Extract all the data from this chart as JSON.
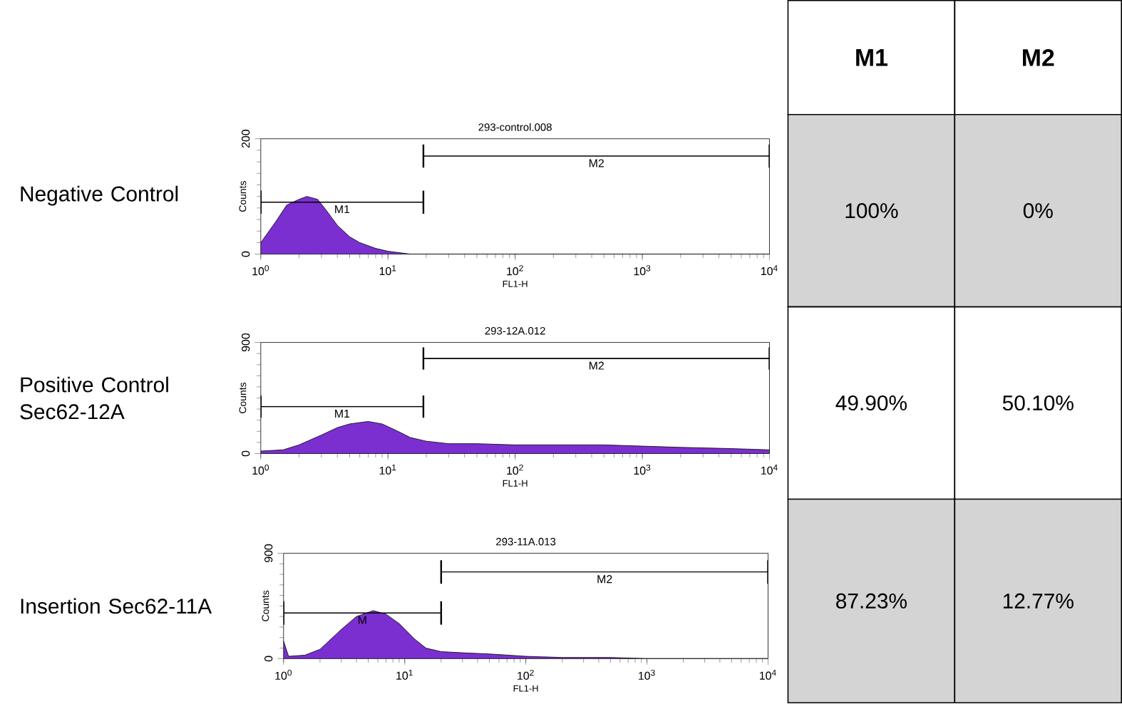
{
  "chart_data": [
    {
      "type": "area",
      "title": "293-control.008",
      "xlabel": "FL1-H",
      "ylabel": "Counts",
      "log": "x",
      "series": [
        {
          "color": "#7b2fd0",
          "x": [
            1,
            1.3,
            1.6,
            2,
            2.3,
            2.8,
            3.3,
            4,
            5,
            6,
            8,
            10,
            15,
            20,
            30,
            10000
          ],
          "values": [
            20,
            55,
            85,
            95,
            100,
            95,
            75,
            50,
            30,
            20,
            10,
            5,
            0,
            0,
            0,
            0
          ]
        },
        {
          "type": "line",
          "name": "M1",
          "color": "#000000",
          "x": [
            1,
            19
          ],
          "values": [
            90,
            90
          ],
          "errors": [
            20,
            20
          ]
        },
        {
          "type": "line",
          "name": "M2",
          "color": "#000000",
          "x": [
            19,
            10000
          ],
          "values": [
            170,
            170
          ],
          "errors": [
            20,
            20
          ]
        }
      ],
      "xlim": [
        1,
        10000
      ],
      "ylim": [
        0,
        200
      ],
      "xticks": [
        {
          "value": 1,
          "label": "10$^{0}$"
        },
        {
          "value": 10,
          "label": "10$^{1}$"
        },
        {
          "value": 100,
          "label": "10$^{2}$"
        },
        {
          "value": 1000,
          "label": "10$^{3}$"
        },
        {
          "value": 10000,
          "label": "10$^{4}$"
        }
      ],
      "yticks": [
        0,
        200
      ],
      "annotations": [
        "Negative Control"
      ]
    },
    {
      "type": "area",
      "title": "293-12A.012",
      "xlabel": "FL1-H",
      "ylabel": "Counts",
      "log": "x",
      "series": [
        {
          "color": "#7b2fd0",
          "x": [
            1,
            1.5,
            2,
            3,
            4,
            5,
            7,
            9,
            12,
            15,
            20,
            30,
            50,
            100,
            200,
            500,
            1000,
            2000,
            5000,
            10000
          ],
          "values": [
            20,
            30,
            70,
            150,
            210,
            240,
            260,
            240,
            180,
            130,
            100,
            80,
            80,
            70,
            70,
            70,
            60,
            50,
            40,
            30
          ]
        },
        {
          "type": "line",
          "name": "M1",
          "color": "#000000",
          "x": [
            1,
            19
          ],
          "values": [
            380,
            380
          ],
          "errors": [
            90,
            90
          ]
        },
        {
          "type": "line",
          "name": "M2",
          "color": "#000000",
          "x": [
            19,
            10000
          ],
          "values": [
            770,
            770
          ],
          "errors": [
            90,
            90
          ]
        }
      ],
      "xlim": [
        1,
        10000
      ],
      "ylim": [
        0,
        900
      ],
      "xticks": [
        {
          "value": 1,
          "label": "10$^{0}$"
        },
        {
          "value": 10,
          "label": "10$^{1}$"
        },
        {
          "value": 100,
          "label": "10$^{2}$"
        },
        {
          "value": 1000,
          "label": "10$^{3}$"
        },
        {
          "value": 10000,
          "label": "10$^{4}$"
        }
      ],
      "yticks": [
        0,
        900
      ],
      "annotations": [
        "Positive Control Sec62-12A"
      ]
    },
    {
      "type": "area",
      "title": "293-11A.013",
      "xlabel": "FL1-H",
      "ylabel": "Counts",
      "log": "x",
      "series": [
        {
          "color": "#7b2fd0",
          "x": [
            1,
            1.1,
            1.5,
            2,
            3,
            4,
            5.5,
            7,
            9,
            12,
            15,
            20,
            30,
            50,
            100,
            200,
            500,
            1000,
            10000
          ],
          "values": [
            150,
            20,
            30,
            80,
            250,
            360,
            410,
            380,
            300,
            170,
            90,
            60,
            50,
            40,
            20,
            10,
            10,
            0,
            0
          ]
        },
        {
          "type": "line",
          "name": "M",
          "color": "#000000",
          "x": [
            1,
            20
          ],
          "values": [
            390,
            390
          ],
          "errors": [
            100,
            100
          ]
        },
        {
          "type": "line",
          "name": "M2",
          "color": "#000000",
          "x": [
            20,
            10000
          ],
          "values": [
            740,
            740
          ],
          "errors": [
            100,
            100
          ]
        }
      ],
      "xlim": [
        1,
        10000
      ],
      "ylim": [
        0,
        900
      ],
      "xticks": [
        {
          "value": 1,
          "label": "10$^{0}$"
        },
        {
          "value": 10,
          "label": "10$^{1}$"
        },
        {
          "value": 100,
          "label": "10$^{2}$"
        },
        {
          "value": 1000,
          "label": "10$^{3}$"
        },
        {
          "value": 10000,
          "label": "10$^{4}$"
        }
      ],
      "yticks": [
        0,
        900
      ],
      "annotations": [
        "Insertion Sec62-11A"
      ]
    },
    {
      "type": "other",
      "categories": [
        "M1",
        "M2"
      ],
      "cell_labels": [
        [
          "100%",
          "0%"
        ],
        [
          "49.90%",
          "50.10%"
        ],
        [
          "87.23%",
          "12.77%"
        ]
      ]
    }
  ]
}
